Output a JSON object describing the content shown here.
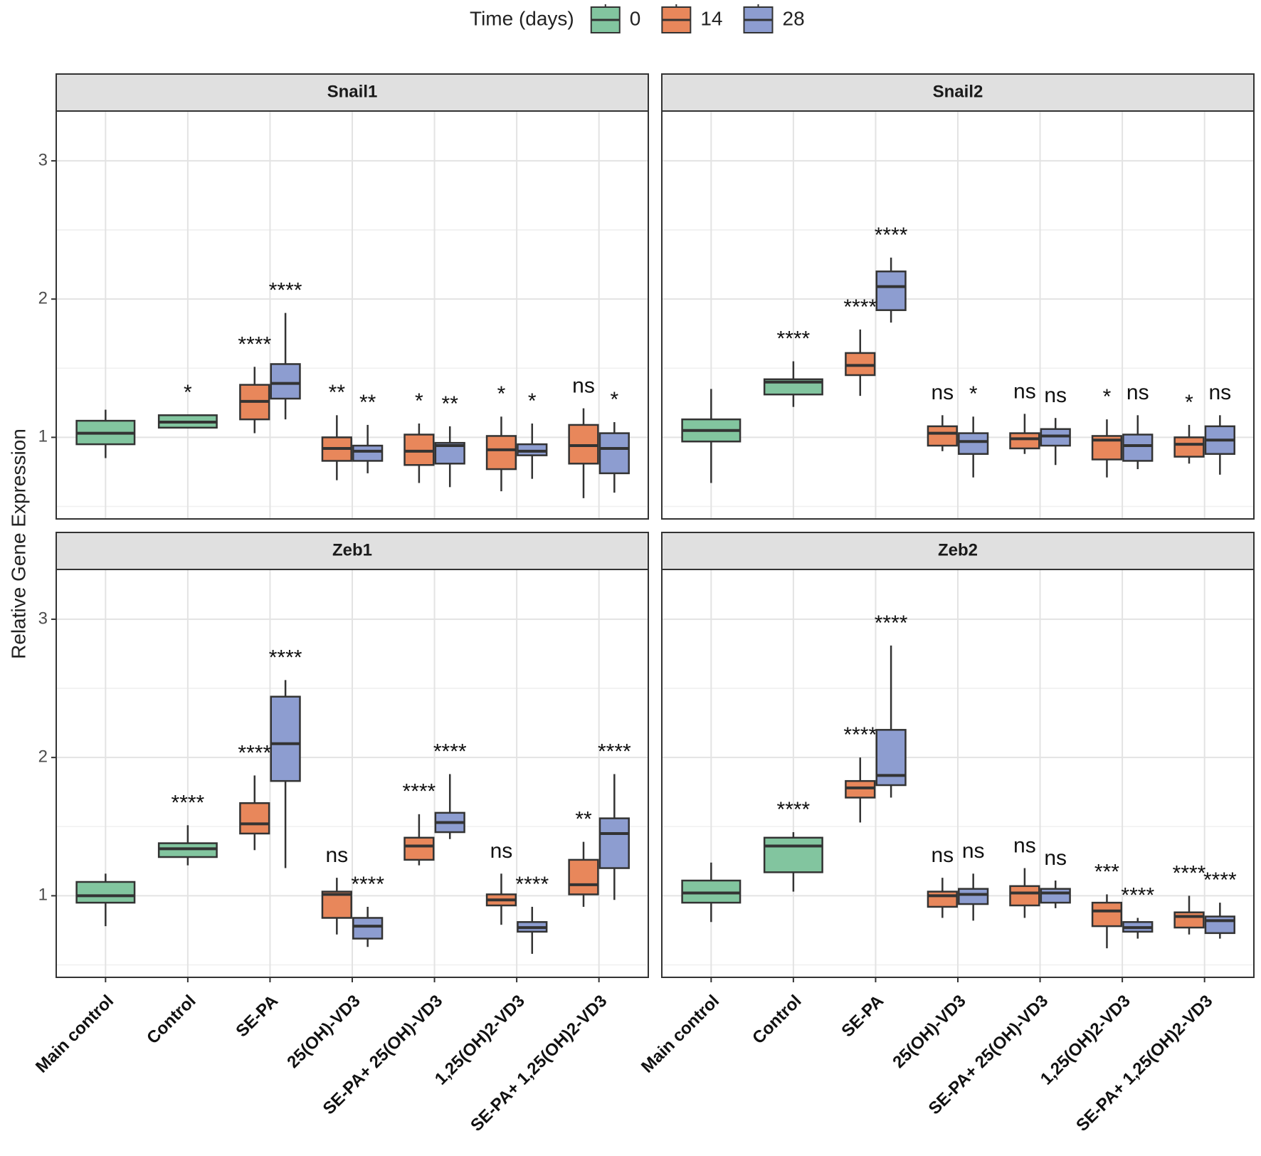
{
  "chart_data": {
    "type": "box",
    "legend_title": "Time (days)",
    "y_label": "Relative Gene Expression",
    "categories": [
      "Main control",
      "Control",
      "SE-PA",
      "25(OH)-VD3",
      "SE-PA+ 25(OH)-VD3",
      "1,25(OH)2-VD3",
      "SE-PA+ 1,25(OH)2-VD3"
    ],
    "ylim": [
      0.41,
      3.36
    ],
    "yticks": [
      1,
      2,
      3
    ],
    "grid": true,
    "legend_position": "top",
    "series": [
      {
        "name": "0",
        "color": "#82c59f"
      },
      {
        "name": "14",
        "color": "#e8875b"
      },
      {
        "name": "28",
        "color": "#8d9dd0"
      }
    ],
    "panels": [
      {
        "title": "Snail1",
        "boxes": [
          {
            "min": [
              0.85,
              1.07,
              null,
              null,
              null,
              null,
              null
            ],
            "q1": [
              0.95,
              1.07,
              null,
              null,
              null,
              null,
              null
            ],
            "median": [
              1.03,
              1.11,
              null,
              null,
              null,
              null,
              null
            ],
            "q3": [
              1.12,
              1.16,
              null,
              null,
              null,
              null,
              null
            ],
            "max": [
              1.2,
              1.16,
              null,
              null,
              null,
              null,
              null
            ],
            "labels": [
              null,
              "*",
              null,
              null,
              null,
              null,
              null
            ]
          },
          {
            "min": [
              null,
              null,
              1.03,
              0.69,
              0.67,
              0.61,
              0.56
            ],
            "q1": [
              null,
              null,
              1.13,
              0.83,
              0.8,
              0.77,
              0.81
            ],
            "median": [
              null,
              null,
              1.26,
              0.92,
              0.9,
              0.91,
              0.94
            ],
            "q3": [
              null,
              null,
              1.38,
              1.0,
              1.02,
              1.01,
              1.09
            ],
            "max": [
              null,
              null,
              1.51,
              1.16,
              1.1,
              1.15,
              1.21
            ],
            "labels": [
              null,
              null,
              "****",
              "**",
              "*",
              "*",
              "ns"
            ]
          },
          {
            "min": [
              null,
              null,
              1.13,
              0.74,
              0.64,
              0.7,
              0.6
            ],
            "q1": [
              null,
              null,
              1.28,
              0.83,
              0.81,
              0.87,
              0.74
            ],
            "median": [
              null,
              null,
              1.39,
              0.9,
              0.94,
              0.9,
              0.92
            ],
            "q3": [
              null,
              null,
              1.53,
              0.94,
              0.96,
              0.95,
              1.03
            ],
            "max": [
              null,
              null,
              1.9,
              1.09,
              1.08,
              1.1,
              1.11
            ],
            "labels": [
              null,
              null,
              "****",
              "**",
              "**",
              "*",
              "*"
            ]
          }
        ]
      },
      {
        "title": "Snail2",
        "boxes": [
          {
            "min": [
              0.67,
              1.22,
              null,
              null,
              null,
              null,
              null
            ],
            "q1": [
              0.97,
              1.31,
              null,
              null,
              null,
              null,
              null
            ],
            "median": [
              1.05,
              1.4,
              null,
              null,
              null,
              null,
              null
            ],
            "q3": [
              1.13,
              1.42,
              null,
              null,
              null,
              null,
              null
            ],
            "max": [
              1.35,
              1.55,
              null,
              null,
              null,
              null,
              null
            ],
            "labels": [
              null,
              "****",
              null,
              null,
              null,
              null,
              null
            ]
          },
          {
            "min": [
              null,
              null,
              1.3,
              0.9,
              0.88,
              0.71,
              0.81
            ],
            "q1": [
              null,
              null,
              1.45,
              0.94,
              0.92,
              0.84,
              0.86
            ],
            "median": [
              null,
              null,
              1.52,
              1.03,
              0.99,
              0.98,
              0.95
            ],
            "q3": [
              null,
              null,
              1.61,
              1.08,
              1.03,
              1.01,
              1.0
            ],
            "max": [
              null,
              null,
              1.78,
              1.16,
              1.17,
              1.13,
              1.09
            ],
            "labels": [
              null,
              null,
              "****",
              "ns",
              "ns",
              "*",
              "*"
            ]
          },
          {
            "min": [
              null,
              null,
              1.83,
              0.71,
              0.8,
              0.77,
              0.73
            ],
            "q1": [
              null,
              null,
              1.92,
              0.88,
              0.94,
              0.83,
              0.88
            ],
            "median": [
              null,
              null,
              2.09,
              0.97,
              1.01,
              0.94,
              0.98
            ],
            "q3": [
              null,
              null,
              2.2,
              1.03,
              1.06,
              1.02,
              1.08
            ],
            "max": [
              null,
              null,
              2.3,
              1.15,
              1.14,
              1.16,
              1.16
            ],
            "labels": [
              null,
              null,
              "****",
              "*",
              "ns",
              "ns",
              "ns"
            ]
          }
        ]
      },
      {
        "title": "Zeb1",
        "boxes": [
          {
            "min": [
              0.78,
              1.22,
              null,
              null,
              null,
              null,
              null
            ],
            "q1": [
              0.95,
              1.28,
              null,
              null,
              null,
              null,
              null
            ],
            "median": [
              1.0,
              1.34,
              null,
              null,
              null,
              null,
              null
            ],
            "q3": [
              1.1,
              1.38,
              null,
              null,
              null,
              null,
              null
            ],
            "max": [
              1.16,
              1.51,
              null,
              null,
              null,
              null,
              null
            ],
            "labels": [
              null,
              "****",
              null,
              null,
              null,
              null,
              null
            ]
          },
          {
            "min": [
              null,
              null,
              1.33,
              0.72,
              1.22,
              0.79,
              0.92
            ],
            "q1": [
              null,
              null,
              1.45,
              0.84,
              1.26,
              0.93,
              1.01
            ],
            "median": [
              null,
              null,
              1.52,
              1.01,
              1.36,
              0.97,
              1.08
            ],
            "q3": [
              null,
              null,
              1.67,
              1.03,
              1.42,
              1.01,
              1.26
            ],
            "max": [
              null,
              null,
              1.87,
              1.13,
              1.59,
              1.16,
              1.39
            ],
            "labels": [
              null,
              null,
              "****",
              "ns",
              "****",
              "ns",
              "**"
            ]
          },
          {
            "min": [
              null,
              null,
              1.2,
              0.63,
              1.41,
              0.58,
              0.97
            ],
            "q1": [
              null,
              null,
              1.83,
              0.69,
              1.46,
              0.74,
              1.2
            ],
            "median": [
              null,
              null,
              2.1,
              0.78,
              1.53,
              0.77,
              1.45
            ],
            "q3": [
              null,
              null,
              2.44,
              0.84,
              1.6,
              0.81,
              1.56
            ],
            "max": [
              null,
              null,
              2.56,
              0.92,
              1.88,
              0.92,
              1.88
            ],
            "labels": [
              null,
              null,
              "****",
              "****",
              "****",
              "****",
              "****"
            ]
          }
        ]
      },
      {
        "title": "Zeb2",
        "boxes": [
          {
            "min": [
              0.81,
              1.03,
              null,
              null,
              null,
              null,
              null
            ],
            "q1": [
              0.95,
              1.17,
              null,
              null,
              null,
              null,
              null
            ],
            "median": [
              1.02,
              1.36,
              null,
              null,
              null,
              null,
              null
            ],
            "q3": [
              1.11,
              1.42,
              null,
              null,
              null,
              null,
              null
            ],
            "max": [
              1.24,
              1.46,
              null,
              null,
              null,
              null,
              null
            ],
            "labels": [
              null,
              "****",
              null,
              null,
              null,
              null,
              null
            ]
          },
          {
            "min": [
              null,
              null,
              1.53,
              0.84,
              0.84,
              0.62,
              0.72
            ],
            "q1": [
              null,
              null,
              1.71,
              0.92,
              0.93,
              0.78,
              0.77
            ],
            "median": [
              null,
              null,
              1.78,
              1.0,
              1.02,
              0.89,
              0.85
            ],
            "q3": [
              null,
              null,
              1.83,
              1.03,
              1.07,
              0.95,
              0.88
            ],
            "max": [
              null,
              null,
              2.0,
              1.13,
              1.2,
              1.01,
              1.0
            ],
            "labels": [
              null,
              null,
              "****",
              "ns",
              "ns",
              "***",
              "****"
            ]
          },
          {
            "min": [
              null,
              null,
              1.71,
              0.82,
              0.91,
              0.69,
              0.69
            ],
            "q1": [
              null,
              null,
              1.8,
              0.94,
              0.95,
              0.74,
              0.73
            ],
            "median": [
              null,
              null,
              1.87,
              1.01,
              1.02,
              0.77,
              0.82
            ],
            "q3": [
              null,
              null,
              2.2,
              1.05,
              1.05,
              0.81,
              0.85
            ],
            "max": [
              null,
              null,
              2.81,
              1.16,
              1.11,
              0.84,
              0.95
            ],
            "labels": [
              null,
              null,
              "****",
              "ns",
              "ns",
              "****",
              "****"
            ]
          }
        ]
      }
    ]
  }
}
